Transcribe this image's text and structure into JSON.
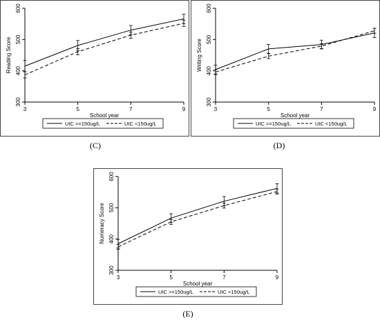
{
  "panels": [
    {
      "panel_label": "(C)",
      "legend": {
        "placement": "bottom"
      },
      "chart_data": {
        "type": "line",
        "ylabel": "Reading Score",
        "xlabel": "School year",
        "x": [
          3,
          5,
          7,
          9
        ],
        "xticks": [
          "3",
          "5",
          "7",
          "9"
        ],
        "ylim": [
          300,
          600
        ],
        "yticks": [
          "300",
          "400",
          "500",
          "600"
        ],
        "grid": false,
        "series": [
          {
            "name": "UIC >=150ug/L",
            "style": "solid",
            "values": [
              415,
              481,
              530,
              566
            ],
            "ci_low": [
              397,
              465,
              515,
              551
            ],
            "ci_high": [
              433,
              497,
              545,
              581
            ]
          },
          {
            "name": "UIC <150ug/L",
            "style": "dashed",
            "values": [
              387,
              461,
              514,
              552
            ],
            "ci_low": [
              377,
              451,
              504,
              542
            ],
            "ci_high": [
              397,
              471,
              524,
              562
            ]
          }
        ]
      }
    },
    {
      "panel_label": "(D)",
      "legend": {
        "placement": "bottom"
      },
      "chart_data": {
        "type": "line",
        "ylabel": "Writing Score",
        "xlabel": "School year",
        "x": [
          3,
          5,
          7,
          9
        ],
        "xticks": [
          "3",
          "5",
          "7",
          "9"
        ],
        "ylim": [
          300,
          600
        ],
        "yticks": [
          "300",
          "400",
          "500",
          "600"
        ],
        "grid": false,
        "series": [
          {
            "name": "UIC >=150ug/L",
            "style": "solid",
            "values": [
              404,
              470,
              484,
              521
            ],
            "ci_low": [
              390,
              456,
              470,
              506
            ],
            "ci_high": [
              418,
              484,
              498,
              536
            ]
          },
          {
            "name": "UIC <150ug/L",
            "style": "dashed",
            "values": [
              396,
              447,
              479,
              528
            ],
            "ci_low": [
              388,
              439,
              471,
              520
            ],
            "ci_high": [
              404,
              455,
              487,
              536
            ]
          }
        ]
      }
    },
    {
      "panel_label": "(E)",
      "legend": {
        "placement": "bottom"
      },
      "chart_data": {
        "type": "line",
        "ylabel": "Numeracy Score",
        "xlabel": "School year",
        "x": [
          3,
          5,
          7,
          9
        ],
        "xticks": [
          "3",
          "5",
          "7",
          "9"
        ],
        "ylim": [
          300,
          600
        ],
        "yticks": [
          "300",
          "400",
          "500",
          "600"
        ],
        "grid": false,
        "series": [
          {
            "name": "UIC >=150ug/L",
            "style": "solid",
            "values": [
              385,
              467,
              521,
              562
            ],
            "ci_low": [
              371,
              453,
              506,
              547
            ],
            "ci_high": [
              399,
              481,
              536,
              577
            ]
          },
          {
            "name": "UIC <150ug/L",
            "style": "dashed",
            "values": [
              375,
              455,
              507,
              552
            ],
            "ci_low": [
              367,
              447,
              499,
              544
            ],
            "ci_high": [
              383,
              463,
              515,
              560
            ]
          }
        ]
      }
    }
  ]
}
